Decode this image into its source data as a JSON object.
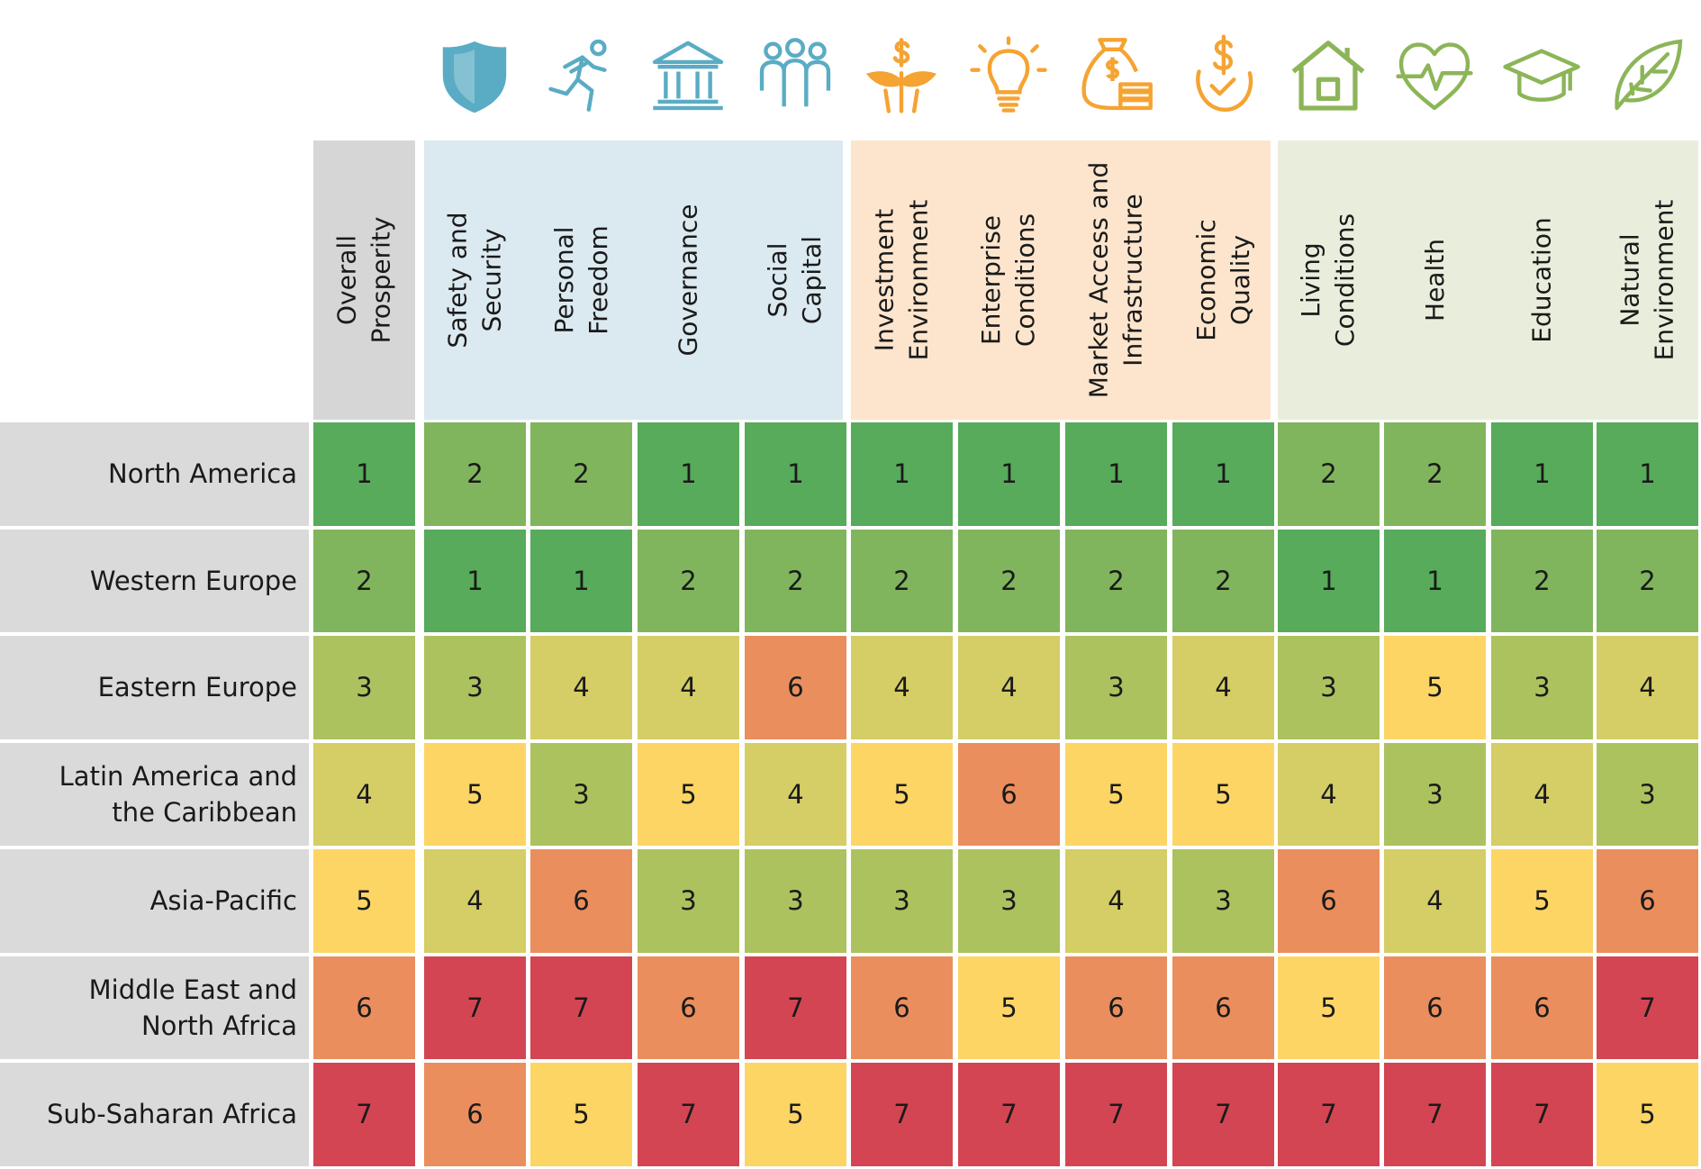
{
  "chart_data": {
    "type": "table",
    "rows": [
      "North America",
      "Western Europe",
      "Eastern Europe",
      "Latin America and\nthe Caribbean",
      "Asia-Pacific",
      "Middle East and\nNorth Africa",
      "Sub-Saharan Africa"
    ],
    "columns": [
      {
        "label": "Overall\nProsperity",
        "group": "overall",
        "icon": ""
      },
      {
        "label": "Safety and\nSecurity",
        "group": "inclusive-societies",
        "icon": "shield-icon"
      },
      {
        "label": "Personal\nFreedom",
        "group": "inclusive-societies",
        "icon": "running-person-icon"
      },
      {
        "label": "Governance",
        "group": "inclusive-societies",
        "icon": "government-building-icon"
      },
      {
        "label": "Social\nCapital",
        "group": "inclusive-societies",
        "icon": "people-group-icon"
      },
      {
        "label": "Investment\nEnvironment",
        "group": "open-economies",
        "icon": "money-plant-icon"
      },
      {
        "label": "Enterprise\nConditions",
        "group": "open-economies",
        "icon": "lightbulb-icon"
      },
      {
        "label": "Market Access and\nInfrastructure",
        "group": "open-economies",
        "icon": "money-bag-coins-icon"
      },
      {
        "label": "Economic\nQuality",
        "group": "open-economies",
        "icon": "dollar-check-icon"
      },
      {
        "label": "Living\nConditions",
        "group": "empowered-people",
        "icon": "house-icon"
      },
      {
        "label": "Health",
        "group": "empowered-people",
        "icon": "heart-pulse-icon"
      },
      {
        "label": "Education",
        "group": "empowered-people",
        "icon": "graduation-cap-icon"
      },
      {
        "label": "Natural\nEnvironment",
        "group": "empowered-people",
        "icon": "leaf-icon"
      }
    ],
    "values": [
      [
        1,
        2,
        2,
        1,
        1,
        1,
        1,
        1,
        1,
        2,
        2,
        1,
        1
      ],
      [
        2,
        1,
        1,
        2,
        2,
        2,
        2,
        2,
        2,
        1,
        1,
        2,
        2
      ],
      [
        3,
        3,
        4,
        4,
        6,
        4,
        4,
        3,
        4,
        3,
        5,
        3,
        4
      ],
      [
        4,
        5,
        3,
        5,
        4,
        5,
        6,
        5,
        5,
        4,
        3,
        4,
        3
      ],
      [
        5,
        4,
        6,
        3,
        3,
        3,
        3,
        4,
        3,
        6,
        4,
        5,
        6
      ],
      [
        6,
        7,
        7,
        6,
        7,
        6,
        5,
        6,
        6,
        5,
        6,
        6,
        7
      ],
      [
        7,
        6,
        5,
        7,
        5,
        7,
        7,
        7,
        7,
        7,
        7,
        7,
        5
      ]
    ],
    "rank_colors": {
      "1": "#57ab5a",
      "2": "#80b55d",
      "3": "#acc25e",
      "4": "#d5cd65",
      "5": "#fdd565",
      "6": "#ea8e5d",
      "7": "#d34552"
    },
    "group_colors": {
      "overall": {
        "header_bg": "#d6d6d6",
        "icon": ""
      },
      "inclusive-societies": {
        "header_bg": "#dbe9f0",
        "icon": "#5aacc4"
      },
      "open-economies": {
        "header_bg": "#fde5cd",
        "icon": "#f5a332"
      },
      "empowered-people": {
        "header_bg": "#e9eddb",
        "icon": "#8cb558"
      }
    }
  }
}
